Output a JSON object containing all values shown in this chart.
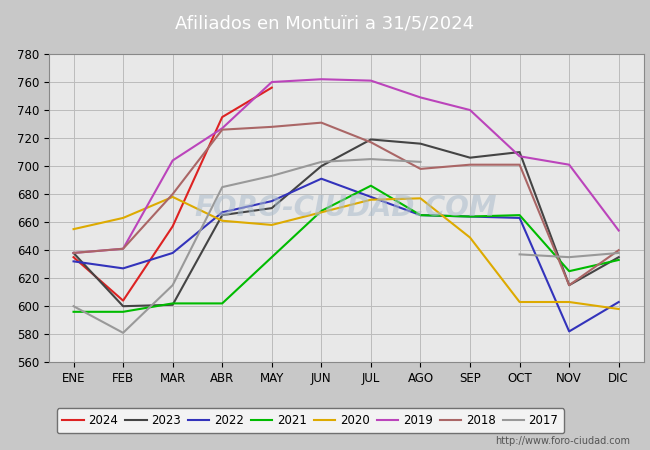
{
  "title": "Afiliados en Montuïri a 31/5/2024",
  "ylim": [
    560,
    780
  ],
  "yticks": [
    560,
    580,
    600,
    620,
    640,
    660,
    680,
    700,
    720,
    740,
    760,
    780
  ],
  "months": [
    "ENE",
    "FEB",
    "MAR",
    "ABR",
    "MAY",
    "JUN",
    "JUL",
    "AGO",
    "SEP",
    "OCT",
    "NOV",
    "DIC"
  ],
  "plot_bg": "#e8e8e8",
  "fig_bg": "#c8c8c8",
  "watermark": "FORO-CIUDAD.COM",
  "url": "http://www.foro-ciudad.com",
  "series": {
    "2024": {
      "color": "#dd2222",
      "data": [
        635,
        604,
        657,
        735,
        756,
        null,
        null,
        null,
        null,
        null,
        null,
        null
      ]
    },
    "2023": {
      "color": "#444444",
      "data": [
        638,
        600,
        601,
        665,
        670,
        700,
        719,
        716,
        706,
        710,
        615,
        635
      ]
    },
    "2022": {
      "color": "#3333bb",
      "data": [
        632,
        627,
        638,
        667,
        675,
        691,
        678,
        665,
        664,
        663,
        582,
        603
      ]
    },
    "2021": {
      "color": "#00bb00",
      "data": [
        596,
        596,
        602,
        602,
        635,
        668,
        686,
        665,
        664,
        665,
        625,
        633
      ]
    },
    "2020": {
      "color": "#ddaa00",
      "data": [
        655,
        663,
        678,
        661,
        658,
        667,
        676,
        677,
        649,
        603,
        603,
        598
      ]
    },
    "2019": {
      "color": "#bb44bb",
      "data": [
        638,
        641,
        704,
        727,
        760,
        762,
        761,
        749,
        740,
        707,
        701,
        654
      ]
    },
    "2018": {
      "color": "#aa6666",
      "data": [
        638,
        641,
        680,
        726,
        728,
        731,
        717,
        698,
        701,
        701,
        615,
        640
      ]
    },
    "2017": {
      "color": "#999999",
      "data": [
        600,
        581,
        615,
        685,
        693,
        703,
        705,
        703,
        null,
        637,
        635,
        638
      ]
    }
  },
  "legend_order": [
    "2024",
    "2023",
    "2022",
    "2021",
    "2020",
    "2019",
    "2018",
    "2017"
  ],
  "title_bg_color": "#4488bb",
  "title_text_color": "#ffffff",
  "title_fontsize": 13,
  "tick_fontsize": 8.5,
  "legend_fontsize": 8.5,
  "grid_color": "#bbbbbb",
  "linewidth": 1.5
}
